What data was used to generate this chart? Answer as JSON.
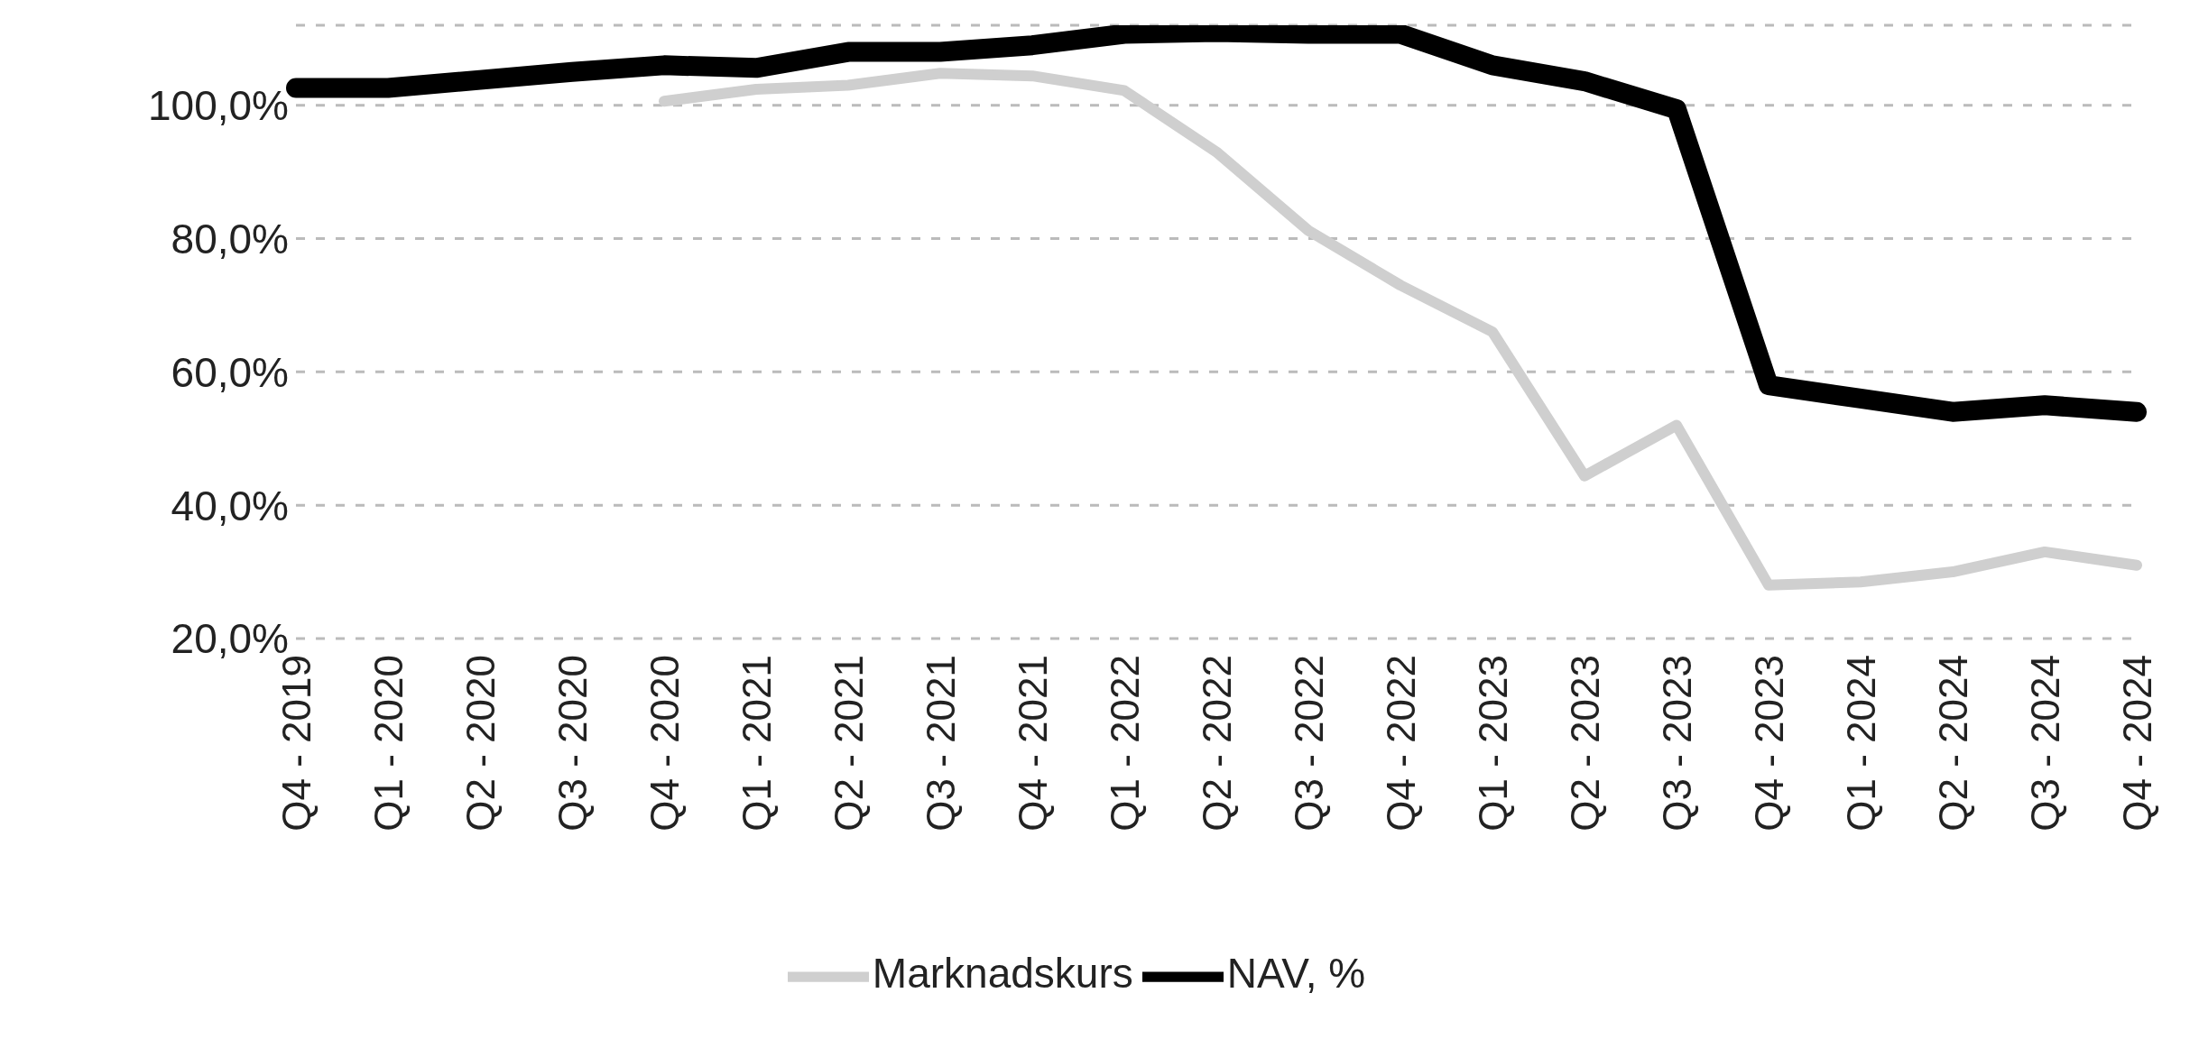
{
  "chart_data": {
    "type": "line",
    "categories": [
      "Q4 - 2019",
      "Q1 - 2020",
      "Q2 - 2020",
      "Q3 - 2020",
      "Q4 - 2020",
      "Q1 - 2021",
      "Q2 - 2021",
      "Q3 - 2021",
      "Q4 - 2021",
      "Q1 - 2022",
      "Q2 - 2022",
      "Q3 - 2022",
      "Q4 - 2022",
      "Q1 - 2023",
      "Q2 - 2023",
      "Q3 - 2023",
      "Q4 - 2023",
      "Q1 - 2024",
      "Q2 - 2024",
      "Q3 - 2024",
      "Q4 - 2024"
    ],
    "series": [
      {
        "name": "NAV, %",
        "color": "#000000",
        "values": [
          102.6,
          102.6,
          103.8,
          105,
          106,
          105.6,
          108,
          108,
          109,
          110.7,
          111,
          110.7,
          110.7,
          106,
          103.6,
          99.4,
          58,
          56,
          54,
          55,
          54
        ]
      },
      {
        "name": "Marknadskurs",
        "color": "#cfcfcf",
        "values": [
          null,
          null,
          null,
          null,
          100.6,
          102.4,
          103,
          104.8,
          104.4,
          102.2,
          93,
          81.2,
          73,
          66,
          44.4,
          52,
          28,
          28.5,
          30,
          33,
          31
        ]
      }
    ],
    "ylim": [
      20,
      112
    ],
    "yticks": [
      {
        "value": 20,
        "label": "20,0%"
      },
      {
        "value": 40,
        "label": "40,0%"
      },
      {
        "value": 60,
        "label": "60,0%"
      },
      {
        "value": 80,
        "label": "80,0%"
      },
      {
        "value": 100,
        "label": "100,0%"
      }
    ],
    "grid": "y",
    "legend": "bottom",
    "marker": "none",
    "line_style": "solid"
  }
}
